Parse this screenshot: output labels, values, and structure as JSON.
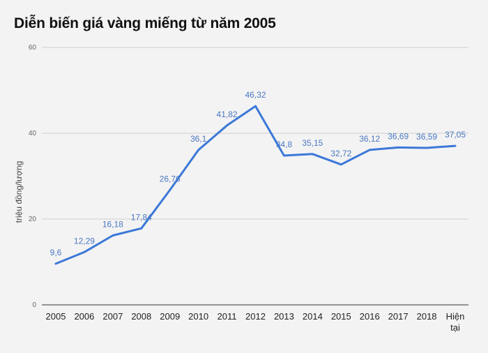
{
  "chart_data": {
    "type": "line",
    "title": "Diễn biến giá vàng miếng từ năm 2005",
    "ylabel": "triệu đồng/lượng",
    "xlabel": "",
    "categories": [
      "2005",
      "2006",
      "2007",
      "2008",
      "2009",
      "2010",
      "2011",
      "2012",
      "2013",
      "2014",
      "2015",
      "2016",
      "2017",
      "2018",
      "Hiện tại"
    ],
    "series": [
      {
        "values": [
          9.6,
          12.29,
          16.18,
          17.84,
          26.76,
          36.1,
          41.82,
          46.32,
          34.8,
          35.15,
          32.72,
          36.12,
          36.69,
          36.59,
          37.05
        ],
        "labels": [
          "9,6",
          "12,29",
          "16,18",
          "17,84",
          "26,76",
          "36,1",
          "41,82",
          "46,32",
          "34,8",
          "35,15",
          "32,72",
          "36,12",
          "36,69",
          "36,59",
          "37,05"
        ],
        "color": "#3c78d8"
      }
    ],
    "ylim": [
      0,
      60
    ],
    "yticks": [
      "0",
      "20",
      "40",
      "60"
    ],
    "grid": true,
    "legend": "none"
  }
}
